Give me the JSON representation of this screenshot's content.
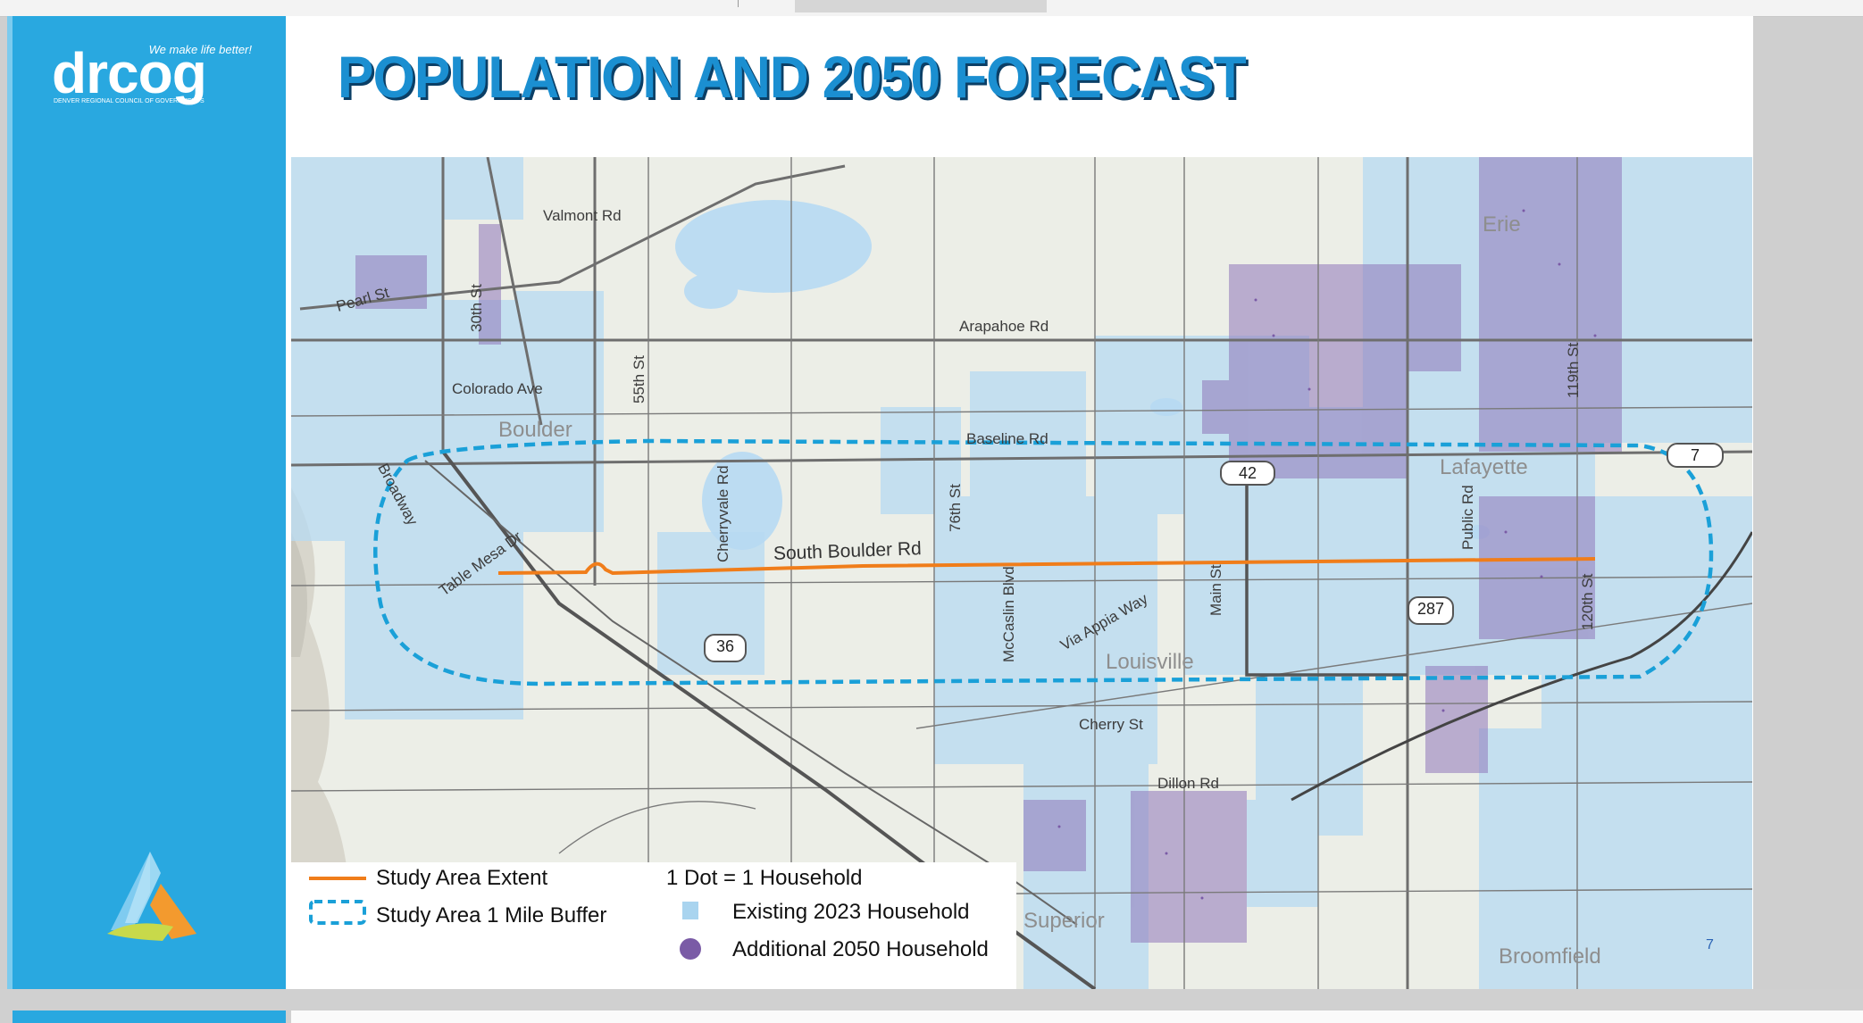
{
  "slide": {
    "title": "POPULATION AND 2050 FORECAST",
    "page_number": "7"
  },
  "logo": {
    "tagline": "We make life better!",
    "wordmark": "drcog",
    "subtitle": "DENVER REGIONAL COUNCIL OF GOVERNMENTS"
  },
  "map": {
    "road_labels": {
      "valmont": "Valmont Rd",
      "pearl": "Pearl St",
      "thirtieth": "30th St",
      "arapahoe": "Arapahoe Rd",
      "colorado": "Colorado Ave",
      "fiftyfifth": "55th St",
      "broadway": "Broadway",
      "baseline": "Baseline Rd",
      "table_mesa": "Table Mesa Dr",
      "cherryvale": "Cherryvale Rd",
      "seventysixth": "76th St",
      "south_boulder": "South Boulder Rd",
      "mccaslin": "McCaslin Blvd",
      "via_appia": "Via Appia Way",
      "main": "Main St",
      "public": "Public Rd",
      "one_twentieth": "120th St",
      "nineteenth": "119th St",
      "cherry": "Cherry St",
      "dillon": "Dillon Rd"
    },
    "place_labels": {
      "boulder": "Boulder",
      "louisville": "Louisville",
      "lafayette": "Lafayette",
      "erie": "Erie",
      "superior": "Superior",
      "broomfield": "Broomfield"
    },
    "route_shields": {
      "r36": "36",
      "r42": "42",
      "r287": "287",
      "r7": "7"
    }
  },
  "legend": {
    "study_area_extent": "Study Area Extent",
    "study_area_buffer": "Study Area 1 Mile Buffer",
    "dot_scale": "1 Dot = 1 Household",
    "existing": "Existing 2023 Household",
    "additional": "Additional 2050 Household"
  },
  "colors": {
    "brand_blue": "#29a8e0",
    "title_blue": "#1b8fd1",
    "study_area_orange": "#f07d1a",
    "buffer_blue": "#1aa0d8",
    "existing_dot": "#a9d4ef",
    "additional_dot": "#7a5ba6"
  }
}
